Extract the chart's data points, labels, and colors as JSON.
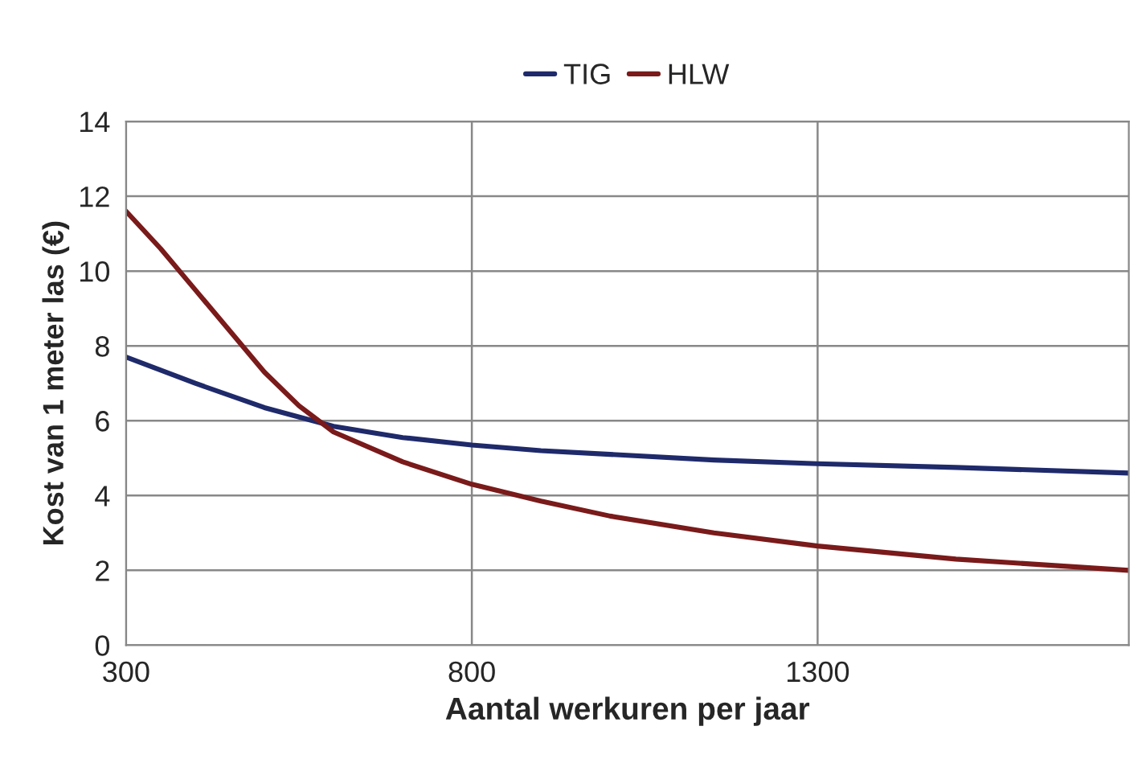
{
  "chart_data": {
    "type": "line",
    "xlabel": "Aantal werkuren per jaar",
    "ylabel": "Kost van 1 meter las (€)",
    "xlim": [
      300,
      1750
    ],
    "xticks": [
      300,
      800,
      1300
    ],
    "ylim": [
      0,
      14
    ],
    "yticks": [
      0,
      2,
      4,
      6,
      8,
      10,
      12,
      14
    ],
    "grid": true,
    "legend": "top",
    "marker": "none",
    "line_style": "solid",
    "series": [
      {
        "name": "TIG",
        "color": "#1f2a6b",
        "x": [
          300,
          400,
          500,
          600,
          700,
          800,
          900,
          1000,
          1150,
          1300,
          1500,
          1750
        ],
        "values": [
          7.7,
          7.0,
          6.35,
          5.85,
          5.55,
          5.35,
          5.2,
          5.1,
          4.95,
          4.85,
          4.75,
          4.6
        ]
      },
      {
        "name": "HLW",
        "color": "#7a1a1a",
        "x": [
          300,
          350,
          400,
          450,
          500,
          550,
          600,
          700,
          800,
          900,
          1000,
          1150,
          1300,
          1500,
          1750
        ],
        "values": [
          11.6,
          10.6,
          9.5,
          8.4,
          7.3,
          6.4,
          5.7,
          4.9,
          4.3,
          3.85,
          3.45,
          3.0,
          2.65,
          2.3,
          2.0
        ]
      }
    ]
  }
}
